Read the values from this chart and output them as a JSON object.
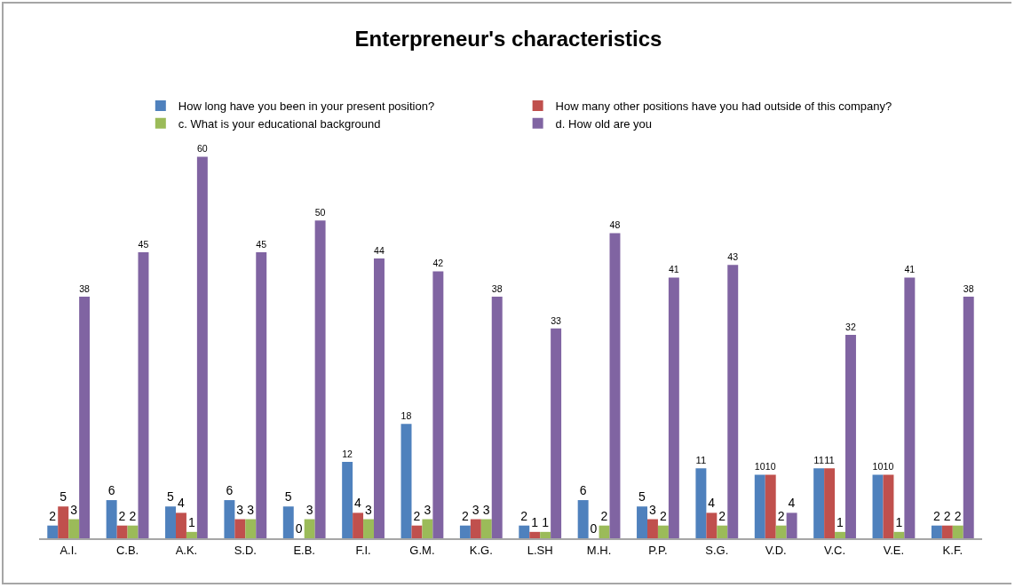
{
  "chart_data": {
    "type": "bar",
    "title": "Enterpreneur's characteristics",
    "categories": [
      "A.I.",
      "C.B.",
      "A.K.",
      "S.D.",
      "E.B.",
      "F.I.",
      "G.M.",
      "K.G.",
      "L.SH",
      "M.H.",
      "P.P.",
      "S.G.",
      "V.D.",
      "V.C.",
      "V.E.",
      "K.F."
    ],
    "series": [
      {
        "name": "How long have you been in your present position?",
        "color": "#4f81bd",
        "values": [
          2,
          6,
          5,
          6,
          5,
          12,
          18,
          2,
          2,
          6,
          5,
          11,
          10,
          11,
          10,
          2
        ]
      },
      {
        "name": "How many other positions have you had outside of this company?",
        "color": "#c0504d",
        "values": [
          5,
          2,
          4,
          3,
          0,
          4,
          2,
          3,
          1,
          0,
          3,
          4,
          10,
          11,
          10,
          2
        ]
      },
      {
        "name": "c. What is your educational background",
        "color": "#9bbb59",
        "values": [
          3,
          2,
          1,
          3,
          3,
          3,
          3,
          3,
          1,
          2,
          2,
          2,
          2,
          1,
          1,
          2
        ]
      },
      {
        "name": "d. How old are you",
        "color": "#8064a2",
        "values": [
          38,
          45,
          60,
          45,
          50,
          44,
          42,
          38,
          33,
          48,
          41,
          43,
          4,
          32,
          41,
          38
        ]
      }
    ],
    "data_labels": true,
    "legend": "top",
    "tick_labels": "x"
  }
}
